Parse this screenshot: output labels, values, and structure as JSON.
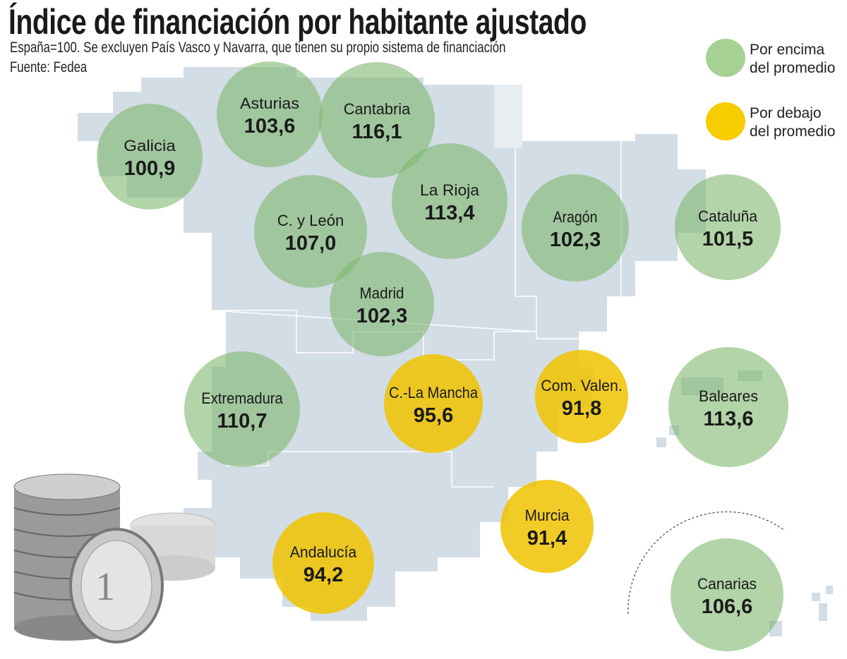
{
  "header": {
    "title": "Índice de financiación por habitante ajustado",
    "subtitle": "España=100. Se excluyen País Vasco y Navarra, que tienen su propio sistema de financiación",
    "source": "Fuente: Fedea"
  },
  "legend": {
    "above": {
      "line1": "Por encima",
      "line2": "del promedio",
      "color": "#9ccb8c"
    },
    "below": {
      "line1": "Por debajo",
      "line2": "del promedio",
      "color": "#f5c800"
    }
  },
  "colors": {
    "map": "#d3dde5",
    "above": "#7fb86e",
    "below": "#f0c300"
  },
  "regions": [
    {
      "name": "Galicia",
      "value": "100,9",
      "status": "above"
    },
    {
      "name": "Asturias",
      "value": "103,6",
      "status": "above"
    },
    {
      "name": "Cantabria",
      "value": "116,1",
      "status": "above"
    },
    {
      "name": "La Rioja",
      "value": "113,4",
      "status": "above"
    },
    {
      "name": "C. y León",
      "value": "107,0",
      "status": "above"
    },
    {
      "name": "Madrid",
      "value": "102,3",
      "status": "above"
    },
    {
      "name": "Aragón",
      "value": "102,3",
      "status": "above"
    },
    {
      "name": "Cataluña",
      "value": "101,5",
      "status": "above"
    },
    {
      "name": "Extremadura",
      "value": "110,7",
      "status": "above"
    },
    {
      "name": "C.-La Mancha",
      "value": "95,6",
      "status": "below"
    },
    {
      "name": "Com. Valen.",
      "value": "91,8",
      "status": "below"
    },
    {
      "name": "Murcia",
      "value": "91,4",
      "status": "below"
    },
    {
      "name": "Andalucía",
      "value": "94,2",
      "status": "below"
    },
    {
      "name": "Baleares",
      "value": "113,6",
      "status": "above"
    },
    {
      "name": "Canarias",
      "value": "106,6",
      "status": "above"
    }
  ]
}
